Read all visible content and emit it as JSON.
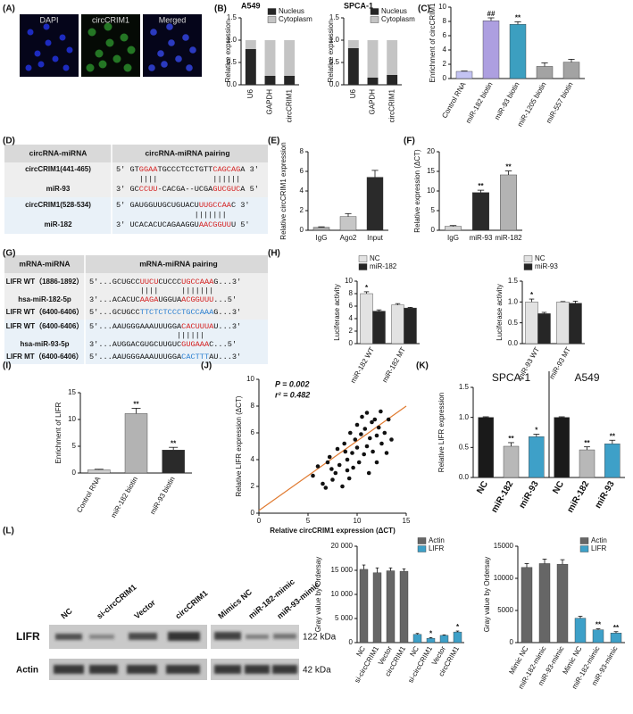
{
  "panel_labels": [
    "(A)",
    "(B)",
    "(C)",
    "(D)",
    "(E)",
    "(F)",
    "(G)",
    "(H)",
    "(I)",
    "(J)",
    "(K)",
    "(L)"
  ],
  "images": {
    "labels": [
      "DAPI",
      "circCRIM1",
      "Merged"
    ]
  },
  "table_d": {
    "header": [
      "circRNA-miRNA",
      "circRNA-miRNA  pairing"
    ],
    "rows": [
      {
        "name": "circCRIM1(441-465)",
        "seq": [
          {
            "text": "5' GT"
          },
          {
            "text": "GGAA",
            "color": "#d42020"
          },
          {
            "text": "TGCCCTCCTGTT"
          },
          {
            "text": "CAGCAG",
            "color": "#d42020"
          },
          {
            "text": "A 3'"
          }
        ]
      },
      {
        "seq": [
          {
            "text": "     ||||            ||||||"
          }
        ]
      },
      {
        "name": "miR-93",
        "seq": [
          {
            "text": "3' GC"
          },
          {
            "text": "CCUU",
            "color": "#d42020"
          },
          {
            "text": "-CACGA--UCGA"
          },
          {
            "text": "GUCGUC",
            "color": "#d42020"
          },
          {
            "text": "A 5'"
          }
        ]
      },
      {
        "name": "circCRIM1(528-534)",
        "seq": [
          {
            "text": "5' GAUGGUUGCUGUACU"
          },
          {
            "text": "UUGCCAA",
            "color": "#d42020"
          },
          {
            "text": "C 3'"
          }
        ]
      },
      {
        "seq": [
          {
            "text": "                 |||||||"
          }
        ]
      },
      {
        "name": "miR-182",
        "seq": [
          {
            "text": "3' UCACACUCAGAAGGU"
          },
          {
            "text": "AACGGUU",
            "color": "#d42020"
          },
          {
            "text": "U 5'"
          }
        ]
      }
    ]
  },
  "table_g": {
    "header": [
      "mRNA-miRNA",
      "mRNA-miRNA  pairing"
    ],
    "rows": [
      {
        "name": "LIFR WT（1886-1892）",
        "seq": [
          {
            "text": "5'...GCUGCC"
          },
          {
            "text": "UUCU",
            "color": "#d42020"
          },
          {
            "text": "CUCCC"
          },
          {
            "text": "UGCCAAA",
            "color": "#d42020"
          },
          {
            "text": "G...3'"
          }
        ]
      },
      {
        "seq": [
          {
            "text": "           ||||     |||||||"
          }
        ]
      },
      {
        "name": "hsa-miR-182-5p",
        "seq": [
          {
            "text": "3'...ACACUC"
          },
          {
            "text": "AAGA",
            "color": "#d42020"
          },
          {
            "text": "UGGUA"
          },
          {
            "text": "ACGGUUU",
            "color": "#d42020"
          },
          {
            "text": "...5'"
          }
        ]
      },
      {
        "name": "LIFR WT（6400-6406）",
        "seq": [
          {
            "text": "5'...GCUGCC"
          },
          {
            "text": "TTCTCTCCCTGCCAAA",
            "color": "#2a7fd0"
          },
          {
            "text": "G...3'"
          }
        ]
      },
      {
        "name": "LIFR WT（6400-6406）",
        "seq": [
          {
            "text": "5'...AAUGGGAAAUUUGGA"
          },
          {
            "text": "CACUUUA",
            "color": "#d42020"
          },
          {
            "text": "U...3'"
          }
        ]
      },
      {
        "seq": [
          {
            "text": "                   ||||||"
          }
        ]
      },
      {
        "name": "hsa-miR-93-5p",
        "seq": [
          {
            "text": "3'...AUGGACGUGCUUGUC"
          },
          {
            "text": "GUGAAA",
            "color": "#d42020"
          },
          {
            "text": "C...5'"
          }
        ]
      },
      {
        "name": "LIFR MT（6400-6406）",
        "seq": [
          {
            "text": "5'...AAUGGGAAAUUUGGA"
          },
          {
            "text": "CACTTT",
            "color": "#2a7fd0"
          },
          {
            "text": "AU...3'"
          }
        ]
      }
    ]
  },
  "blot": {
    "lanes": [
      "NC",
      "si-circCRIM1",
      "Vector",
      "circCRIM1",
      "Mimics NC",
      "miR-182-mimic",
      "miR-93-mimic"
    ],
    "rows": [
      {
        "name": "LIFR",
        "size": "122 kDa"
      },
      {
        "name": "Actin",
        "size": "42 kDa"
      }
    ]
  },
  "chart_data": [
    {
      "type": "bar",
      "stacked": true,
      "title": "A549",
      "ylabel": "Relative  expression",
      "categories": [
        "U6",
        "GAPDH",
        "circCRIM1"
      ],
      "series": [
        {
          "name": "Nucleus",
          "color": "#262626",
          "values": [
            0.8,
            0.2,
            0.2
          ]
        },
        {
          "name": "Cytoplasm",
          "color": "#c4c4c4",
          "values": [
            0.2,
            0.8,
            0.8
          ]
        }
      ],
      "ylim": [
        0,
        1.5
      ],
      "yticks": [
        {
          "value": 0,
          "label": "0.0"
        },
        {
          "value": 0.5,
          "label": "0.5"
        },
        {
          "value": 1,
          "label": "1.0"
        },
        {
          "value": 1.5,
          "label": "1.5"
        }
      ]
    },
    {
      "type": "bar",
      "stacked": true,
      "title": "SPCA-1",
      "ylabel": "Relative  expression",
      "categories": [
        "U6",
        "GAPDH",
        "circCRIM1"
      ],
      "series": [
        {
          "name": "Nucleus",
          "color": "#262626",
          "values": [
            0.82,
            0.16,
            0.22
          ]
        },
        {
          "name": "Cytoplasm",
          "color": "#c4c4c4",
          "values": [
            0.18,
            0.84,
            0.78
          ]
        }
      ],
      "ylim": [
        0,
        1.5
      ],
      "yticks": [
        {
          "value": 0,
          "label": "0.0"
        },
        {
          "value": 0.5,
          "label": "0.5"
        },
        {
          "value": 1,
          "label": "1.0"
        },
        {
          "value": 1.5,
          "label": "1.5"
        }
      ]
    },
    {
      "type": "bar",
      "ylabel": "Enrichment of circCRIM1",
      "categories": [
        "Control RNA",
        "miR-182 biotin",
        "miR-93 biotin",
        "miR-1205 biotin",
        "miR-557 biotin"
      ],
      "series": [
        {
          "colors": [
            "#c3c3f2",
            "#ad9fe0",
            "#3c9fc0",
            "#a3a3a3",
            "#a3a3a3"
          ],
          "values": [
            1,
            8.1,
            7.6,
            1.7,
            2.3
          ],
          "errors": [
            0.05,
            0.4,
            0.35,
            0.5,
            0.4
          ],
          "sig": [
            null,
            "##",
            "**",
            null,
            null
          ]
        }
      ],
      "ylim": [
        0,
        10
      ],
      "yticks": [
        0,
        2,
        4,
        6,
        8,
        10
      ]
    },
    {
      "type": "bar",
      "ylabel": "Relative circCRIM1 expression",
      "categories": [
        "IgG",
        "Ago2",
        "Input"
      ],
      "series": [
        {
          "colors": [
            "#a8a8a8",
            "#c6c6c6",
            "#2a2a2a"
          ],
          "values": [
            0.3,
            1.4,
            5.4
          ],
          "errors": [
            0.05,
            0.3,
            0.7
          ]
        }
      ],
      "ylim": [
        0,
        8
      ],
      "yticks": [
        0,
        2,
        4,
        6,
        8
      ]
    },
    {
      "type": "bar",
      "ylabel": "Relative  expression  (ΔCT)",
      "categories": [
        "IgG",
        "miR-93",
        "miR-182"
      ],
      "series": [
        {
          "colors": [
            "#d4d4d4",
            "#2a2a2a",
            "#b3b3b3"
          ],
          "values": [
            1,
            9.6,
            14.1
          ],
          "errors": [
            0.2,
            0.6,
            1.0
          ],
          "sig": [
            null,
            "**",
            "**"
          ]
        }
      ],
      "ylim": [
        0,
        20
      ],
      "yticks": [
        0,
        5,
        10,
        15,
        20
      ]
    },
    {
      "type": "bar",
      "ylabel": "Luciferase activity",
      "categories": [
        "miR-182 WT",
        "miR-182  MT"
      ],
      "series": [
        {
          "name": "NC",
          "color": "#e2e2e2",
          "values": [
            8.0,
            6.2
          ],
          "errors": [
            0.3,
            0.2
          ],
          "sig": [
            "*",
            null
          ]
        },
        {
          "name": "miR-182",
          "color": "#262626",
          "values": [
            5.2,
            5.7
          ],
          "errors": [
            0.2,
            0.1
          ]
        }
      ],
      "ylim": [
        0,
        10
      ],
      "yticks": [
        0,
        2,
        4,
        6,
        8,
        10
      ]
    },
    {
      "type": "bar",
      "ylabel": "Luciferase activity",
      "categories": [
        "miR-93 WT",
        "miR-93 MT"
      ],
      "series": [
        {
          "name": "NC",
          "color": "#e2e2e2",
          "values": [
            1.0,
            1.0
          ],
          "errors": [
            0.07,
            0.01
          ],
          "sig": [
            "*",
            null
          ]
        },
        {
          "name": "miR-93",
          "color": "#262626",
          "values": [
            0.72,
            0.97
          ],
          "errors": [
            0.03,
            0.05
          ]
        }
      ],
      "ylim": [
        0,
        1.5
      ],
      "yticks": [
        {
          "value": 0,
          "label": "0.0"
        },
        {
          "value": 0.5,
          "label": "0.5"
        },
        {
          "value": 1,
          "label": "1.0"
        },
        {
          "value": 1.5,
          "label": "1.5"
        }
      ]
    },
    {
      "type": "bar",
      "ylabel": "Enrichment of LIFR",
      "categories": [
        "Control RNA",
        "miR-182 biotin",
        "miR-93 biotin"
      ],
      "series": [
        {
          "colors": [
            "#d0d0d0",
            "#b3b3b3",
            "#2a2a2a"
          ],
          "values": [
            0.6,
            11.1,
            4.3
          ],
          "errors": [
            0.1,
            1.0,
            0.5
          ],
          "sig": [
            null,
            "**",
            "**"
          ]
        }
      ],
      "ylim": [
        0,
        15
      ],
      "yticks": [
        0,
        5,
        10,
        15
      ]
    },
    {
      "type": "scatter",
      "xlabel": "Relative circCRIM1 expression (ΔCT)",
      "ylabel": "Relative LIFR expression (ΔCT)",
      "annotations": [
        "P = 0.002",
        "r² = 0.482"
      ],
      "color": "#111111",
      "x": [
        5.5,
        6,
        6.5,
        7,
        7.2,
        7.5,
        7.8,
        8,
        8.2,
        8.5,
        8.7,
        9,
        9,
        9.3,
        9.5,
        9.6,
        9.8,
        10,
        10,
        10.2,
        10.4,
        10.5,
        10.7,
        10.8,
        11,
        11,
        11.2,
        11.3,
        11.5,
        11.6,
        11.8,
        12,
        12,
        12.2,
        12.4,
        12.5,
        12.8,
        13,
        13.2,
        13.5,
        9.2,
        8.8,
        6.8,
        7.4
      ],
      "values": [
        2.8,
        3.5,
        2.2,
        3.8,
        4.2,
        2.5,
        3.0,
        4.8,
        3.6,
        2.0,
        5.2,
        4.0,
        3.2,
        6.0,
        4.5,
        3.4,
        5.5,
        4.9,
        6.6,
        3.8,
        5.9,
        7.2,
        4.4,
        6.3,
        5.0,
        7.5,
        3.0,
        5.6,
        6.8,
        4.6,
        7.0,
        5.8,
        3.8,
        6.4,
        7.6,
        5.2,
        6.0,
        4.5,
        7.0,
        5.5,
        2.6,
        4.6,
        1.9,
        3.3
      ],
      "fit": {
        "color": "#e07a30",
        "x": [
          0,
          15
        ],
        "y": [
          0.2,
          8.0
        ]
      },
      "xlim": [
        0,
        15
      ],
      "xticks": [
        0,
        5,
        10,
        15
      ],
      "ylim": [
        0,
        10
      ],
      "yticks": [
        0,
        2,
        4,
        6,
        8,
        10
      ]
    },
    {
      "type": "bar",
      "ylabel": "Relative LIFR expression",
      "groups": [
        "SPCA-1",
        "A549"
      ],
      "categories": [
        "NC",
        "miR-182",
        "miR-93",
        "NC",
        "miR-182",
        "miR-93"
      ],
      "series": [
        {
          "colors": [
            "#1a1a1a",
            "#b8b8b8",
            "#3ea0c8",
            "#1a1a1a",
            "#b8b8b8",
            "#3ea0c8"
          ],
          "values": [
            1,
            0.52,
            0.68,
            1,
            0.46,
            0.56
          ],
          "errors": [
            0.01,
            0.06,
            0.04,
            0.01,
            0.05,
            0.06
          ],
          "sig": [
            null,
            "**",
            "*",
            null,
            "**",
            "**"
          ]
        }
      ],
      "ylim": [
        0,
        1.5
      ],
      "yticks": [
        {
          "value": 0,
          "label": "0.0"
        },
        {
          "value": 0.5,
          "label": "0.5"
        },
        {
          "value": 1,
          "label": "1.0"
        },
        {
          "value": 1.5,
          "label": "1.5"
        }
      ]
    },
    {
      "type": "bar",
      "ylabel": "Gray value by Ordersay",
      "categories": [
        "NC",
        "si-circCRIM1",
        "Vector",
        "circCRIM1",
        "NC",
        "si-circCRIM1",
        "Vector",
        "circCRIM1"
      ],
      "series": [
        {
          "name": "Actin",
          "color": "#666666",
          "values": [
            15200,
            14500,
            14900,
            14800,
            null,
            null,
            null,
            null
          ],
          "errors": [
            900,
            1000,
            600,
            500,
            null,
            null,
            null,
            null
          ]
        },
        {
          "name": "LIFR",
          "color": "#3ea0c8",
          "values": [
            null,
            null,
            null,
            null,
            1700,
            900,
            1500,
            2200
          ],
          "errors": [
            null,
            null,
            null,
            null,
            200,
            150,
            100,
            200
          ],
          "sig": [
            null,
            null,
            null,
            null,
            null,
            "*",
            null,
            "*"
          ]
        }
      ],
      "ylim": [
        0,
        20000
      ],
      "yticks": [
        0,
        {
          "value": 5000,
          "label": "5 000"
        },
        {
          "value": 10000,
          "label": "10 000"
        },
        {
          "value": 15000,
          "label": "15 000"
        },
        {
          "value": 20000,
          "label": "20 000"
        }
      ]
    },
    {
      "type": "bar",
      "ylabel": "Gray value by Ordersay",
      "categories": [
        "Mimic NC",
        "miR-182-mimic",
        "miR-93-mimic",
        "Mimic NC",
        "miR-182-mimic",
        "miR-93-mimic"
      ],
      "series": [
        {
          "name": "Actin",
          "color": "#666666",
          "values": [
            11700,
            12300,
            12200,
            null,
            null,
            null
          ],
          "errors": [
            600,
            700,
            700,
            null,
            null,
            null
          ]
        },
        {
          "name": "LIFR",
          "color": "#3ea0c8",
          "values": [
            null,
            null,
            null,
            3800,
            2000,
            1500
          ],
          "errors": [
            null,
            null,
            null,
            300,
            150,
            200
          ],
          "sig": [
            null,
            null,
            null,
            null,
            "**",
            "**"
          ]
        }
      ],
      "ylim": [
        0,
        15000
      ],
      "yticks": [
        0,
        5000,
        10000,
        15000
      ]
    }
  ]
}
